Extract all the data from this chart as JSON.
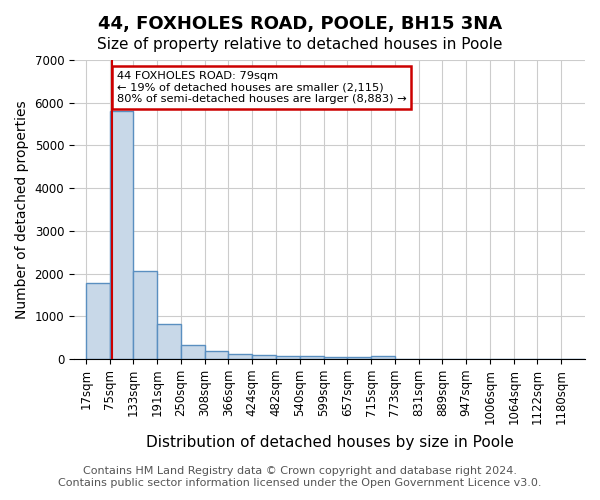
{
  "title1": "44, FOXHOLES ROAD, POOLE, BH15 3NA",
  "title2": "Size of property relative to detached houses in Poole",
  "xlabel": "Distribution of detached houses by size in Poole",
  "ylabel": "Number of detached properties",
  "categories": [
    "17sqm",
    "75sqm",
    "133sqm",
    "191sqm",
    "250sqm",
    "308sqm",
    "366sqm",
    "424sqm",
    "482sqm",
    "540sqm",
    "599sqm",
    "657sqm",
    "715sqm",
    "773sqm",
    "831sqm",
    "889sqm",
    "947sqm",
    "1006sqm",
    "1064sqm",
    "1122sqm",
    "1180sqm"
  ],
  "values": [
    1780,
    5800,
    2060,
    820,
    340,
    190,
    110,
    90,
    80,
    60,
    50,
    40,
    70,
    0,
    0,
    0,
    0,
    0,
    0,
    0,
    0
  ],
  "bar_color": "#c8d8e8",
  "bar_edge_color": "#5a8fc0",
  "bar_edge_width": 1.0,
  "property_line_color": "#cc0000",
  "annotation_line1": "44 FOXHOLES ROAD: 79sqm",
  "annotation_line2": "← 19% of detached houses are smaller (2,115)",
  "annotation_line3": "80% of semi-detached houses are larger (8,883) →",
  "annotation_box_color": "#ffffff",
  "annotation_box_edge_color": "#cc0000",
  "ylim": [
    0,
    7000
  ],
  "yticks": [
    0,
    1000,
    2000,
    3000,
    4000,
    5000,
    6000,
    7000
  ],
  "footer1": "Contains HM Land Registry data © Crown copyright and database right 2024.",
  "footer2": "Contains public sector information licensed under the Open Government Licence v3.0.",
  "bg_color": "#ffffff",
  "grid_color": "#cccccc",
  "title1_fontsize": 13,
  "title2_fontsize": 11,
  "axis_fontsize": 10,
  "tick_fontsize": 8.5,
  "footer_fontsize": 8
}
